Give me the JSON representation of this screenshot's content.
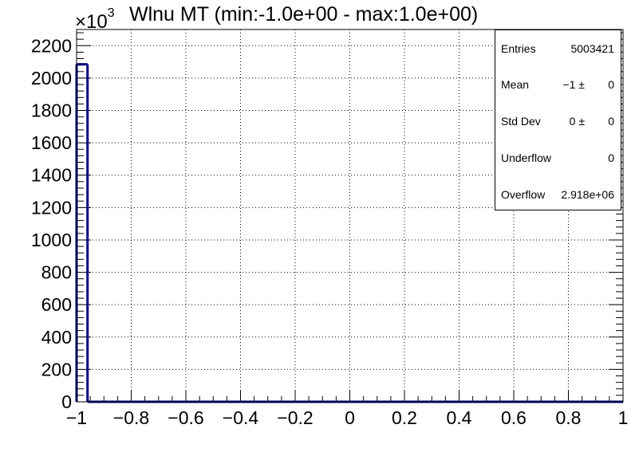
{
  "title": "Wlnu MT (min:-1.0e+00 - max:1.0e+00)",
  "y_scale_label": {
    "base": "×10",
    "exponent": "3"
  },
  "colors": {
    "line": "#00007f",
    "grid": "#000000",
    "frame": "#000000"
  },
  "stats": {
    "entries": {
      "label": "Entries",
      "value": "5003421"
    },
    "mean": {
      "label": "Mean",
      "value": "−1 ±",
      "error": "0"
    },
    "std_dev": {
      "label": "Std Dev",
      "value": "0 ±",
      "error": "0"
    },
    "underflow": {
      "label": "Underflow",
      "value": "0"
    },
    "overflow": {
      "label": "Overflow",
      "value": "2.918e+06"
    }
  },
  "chart_data": {
    "type": "bar",
    "title": "Wlnu MT (min:-1.0e+00 - max:1.0e+00)",
    "xlabel": "",
    "ylabel": "",
    "xlim": [
      -1,
      1
    ],
    "ylim": [
      0,
      2300
    ],
    "y_multiplier": "×10^3",
    "grid": true,
    "legend": "top-right stats box",
    "x_ticks": [
      "−1",
      "−0.8",
      "−0.6",
      "−0.4",
      "−0.2",
      "0",
      "0.2",
      "0.4",
      "0.6",
      "0.8",
      "1"
    ],
    "y_ticks": [
      "0",
      "200",
      "400",
      "600",
      "800",
      "1000",
      "1200",
      "1400",
      "1600",
      "1800",
      "2000",
      "2200"
    ],
    "bins": [
      {
        "x_low": -1.0,
        "x_high": -0.96,
        "value": 2085
      },
      {
        "x_low": -0.96,
        "x_high": 1.0,
        "value": 0
      }
    ]
  }
}
